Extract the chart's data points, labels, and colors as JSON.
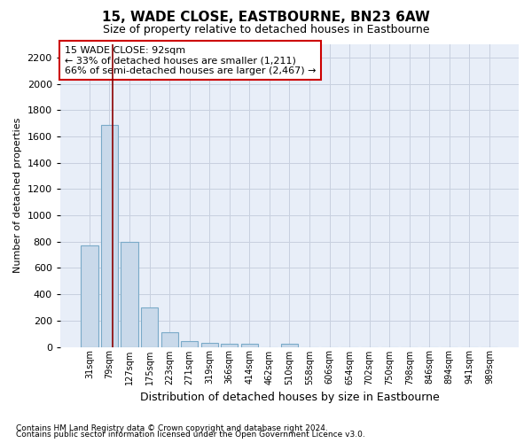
{
  "title": "15, WADE CLOSE, EASTBOURNE, BN23 6AW",
  "subtitle": "Size of property relative to detached houses in Eastbourne",
  "xlabel": "Distribution of detached houses by size in Eastbourne",
  "ylabel": "Number of detached properties",
  "footnote1": "Contains HM Land Registry data © Crown copyright and database right 2024.",
  "footnote2": "Contains public sector information licensed under the Open Government Licence v3.0.",
  "categories": [
    "31sqm",
    "79sqm",
    "127sqm",
    "175sqm",
    "223sqm",
    "271sqm",
    "319sqm",
    "366sqm",
    "414sqm",
    "462sqm",
    "510sqm",
    "558sqm",
    "606sqm",
    "654sqm",
    "702sqm",
    "750sqm",
    "798sqm",
    "846sqm",
    "894sqm",
    "941sqm",
    "989sqm"
  ],
  "values": [
    770,
    1690,
    795,
    300,
    110,
    42,
    32,
    25,
    22,
    0,
    22,
    0,
    0,
    0,
    0,
    0,
    0,
    0,
    0,
    0,
    0
  ],
  "bar_color": "#c9d9ea",
  "bar_edge_color": "#7aaac8",
  "vline_x": 1.15,
  "vline_color": "#8b0000",
  "annotation_text": "15 WADE CLOSE: 92sqm\n← 33% of detached houses are smaller (1,211)\n66% of semi-detached houses are larger (2,467) →",
  "annotation_box_color": "white",
  "annotation_box_edge_color": "#cc0000",
  "ylim": [
    0,
    2300
  ],
  "yticks": [
    0,
    200,
    400,
    600,
    800,
    1000,
    1200,
    1400,
    1600,
    1800,
    2000,
    2200
  ],
  "grid_color": "#c8d0df",
  "bg_color": "#e8eef8",
  "title_fontsize": 11,
  "subtitle_fontsize": 9,
  "ylabel_fontsize": 8,
  "xlabel_fontsize": 9,
  "tick_fontsize": 8,
  "xtick_fontsize": 7
}
